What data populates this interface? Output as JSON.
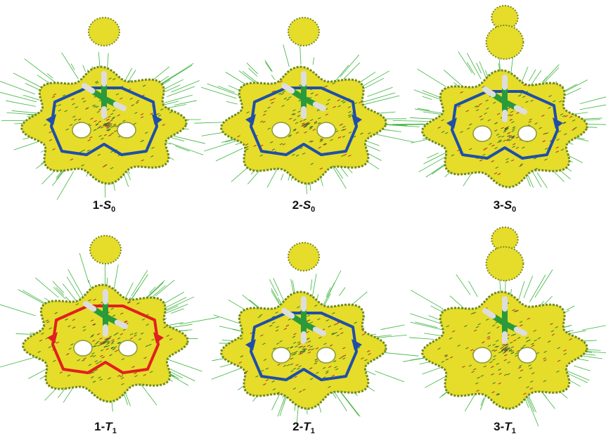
{
  "figure": {
    "panels": [
      {
        "prefix": "1-",
        "letter": "S",
        "subscript": "0"
      },
      {
        "prefix": "2-",
        "letter": "S",
        "subscript": "0"
      },
      {
        "prefix": "3-",
        "letter": "S",
        "subscript": "0"
      },
      {
        "prefix": "1-",
        "letter": "T",
        "subscript": "1"
      },
      {
        "prefix": "2-",
        "letter": "T",
        "subscript": "1"
      },
      {
        "prefix": "3-",
        "letter": "T",
        "subscript": "1"
      }
    ]
  }
}
